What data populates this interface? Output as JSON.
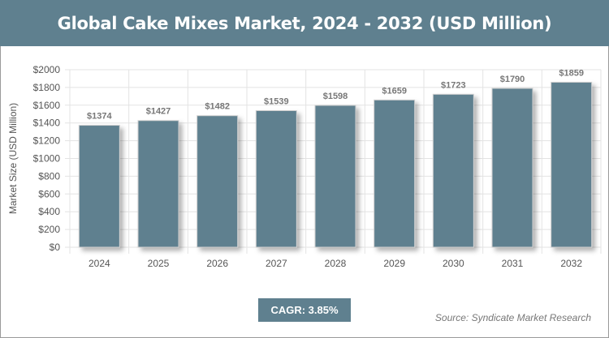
{
  "header": {
    "title": "Global Cake Mixes Market, 2024 - 2032 (USD Million)"
  },
  "footer": {
    "cagr": "CAGR: 3.85%",
    "source": "Source: Syndicate Market Research"
  },
  "colors": {
    "bar": "#5f808f",
    "header": "#5f808f"
  },
  "chart_data": {
    "type": "bar",
    "title": "Global Cake Mixes Market, 2024 - 2032 (USD Million)",
    "xlabel": "",
    "ylabel": "Market Size (USD Million)",
    "categories": [
      "2024",
      "2025",
      "2026",
      "2027",
      "2028",
      "2029",
      "2030",
      "2031",
      "2032"
    ],
    "values": [
      1374,
      1427,
      1482,
      1539,
      1598,
      1659,
      1723,
      1790,
      1859
    ],
    "data_labels": [
      "$1374",
      "$1427",
      "$1482",
      "$1539",
      "$1598",
      "$1659",
      "$1723",
      "$1790",
      "$1859"
    ],
    "ylim": [
      0,
      2000
    ],
    "yticks": [
      "$0",
      "$200",
      "$400",
      "$600",
      "$800",
      "$1000",
      "$1200",
      "$1400",
      "$1600",
      "$1800",
      "$2000"
    ],
    "grid": true
  }
}
